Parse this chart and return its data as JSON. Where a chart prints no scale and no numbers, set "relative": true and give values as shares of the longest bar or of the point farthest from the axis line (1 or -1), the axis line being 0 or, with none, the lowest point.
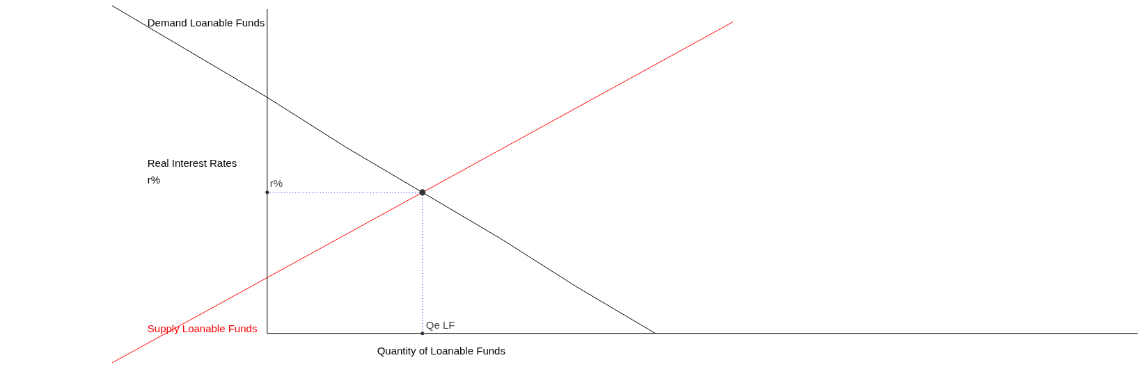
{
  "chart_data": {
    "type": "line",
    "relative": true,
    "xlabel": "Quantity of Loanable Funds",
    "ylabel": "Real Interest Rates r%",
    "categories": [
      null,
      null,
      null,
      null,
      null,
      null,
      null,
      null,
      null
    ],
    "series": [
      {
        "name": "Demand Loanable Funds",
        "color": "#000000",
        "values": [
          1,
          0.86,
          0.72,
          0.57,
          0.43,
          0.29,
          0.14,
          0,
          null
        ]
      },
      {
        "name": "Supply Loanable Funds",
        "color": "#ff0000",
        "values": [
          -0.09,
          0.04,
          0.17,
          0.3,
          0.43,
          0.56,
          0.69,
          0.82,
          0.95
        ]
      }
    ],
    "ref_lines": [
      {
        "axis": "y",
        "value": 0.43,
        "color": "#0000ff",
        "line_style": "dotted"
      }
    ],
    "annotations": [
      {
        "text": "r%",
        "y": 0.43
      },
      "Qe LF"
    ],
    "legend": "left",
    "marker": "none",
    "line_style": "solid"
  }
}
